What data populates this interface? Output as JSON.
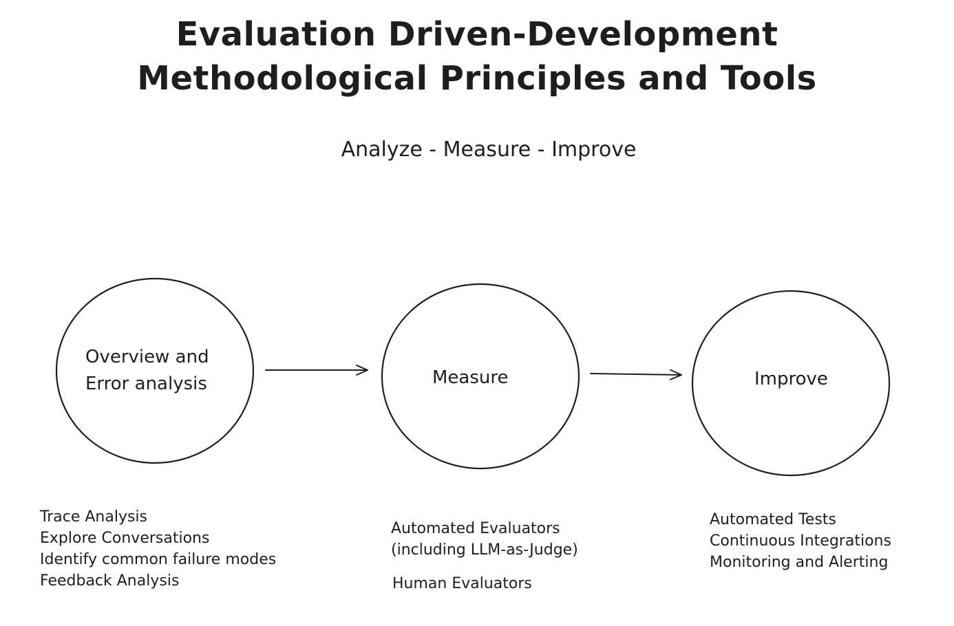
{
  "title": {
    "line1": "Evaluation Driven-Development",
    "line2": "Methodological Principles and Tools"
  },
  "subtitle": "Analyze - Measure - Improve",
  "nodes": {
    "overview": {
      "label_line1": "Overview and",
      "label_line2": "Error analysis",
      "notes": [
        "Trace Analysis",
        "Explore Conversations",
        "Identify common failure modes",
        "Feedback Analysis"
      ]
    },
    "measure": {
      "label": "Measure",
      "notes_group1": [
        "Automated Evaluators",
        "(including LLM-as-Judge)"
      ],
      "notes_group2": [
        "Human Evaluators"
      ]
    },
    "improve": {
      "label": "Improve",
      "notes": [
        "Automated Tests",
        "Continuous Integrations",
        "Monitoring and Alerting"
      ]
    }
  },
  "colors": {
    "stroke": "#1e1e1e",
    "background": "#ffffff"
  }
}
